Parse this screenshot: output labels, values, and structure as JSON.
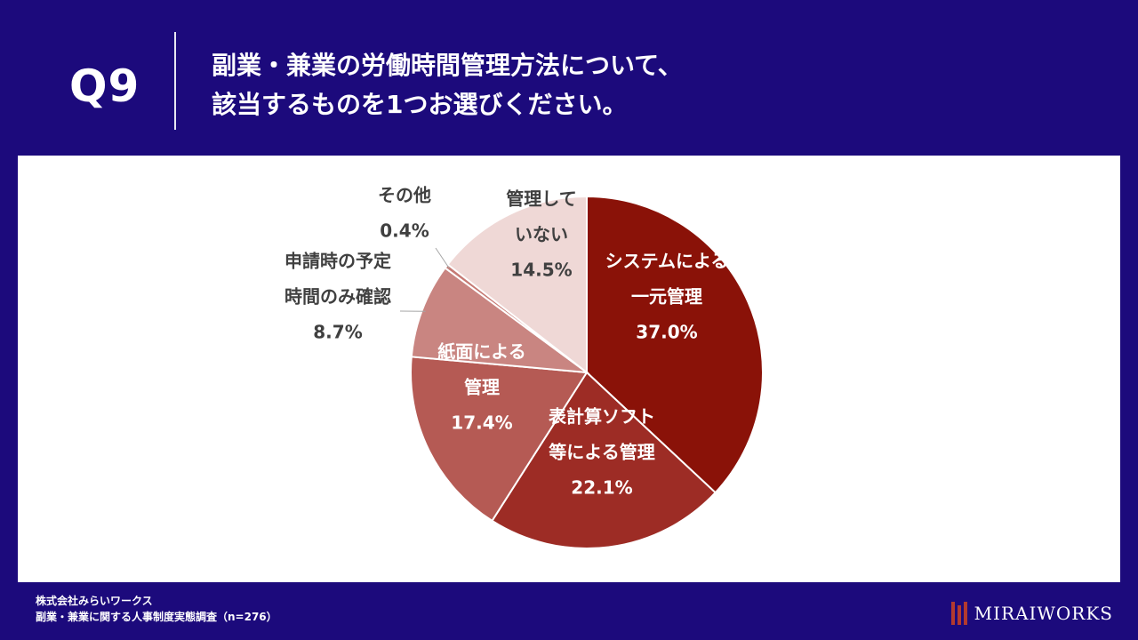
{
  "header": {
    "q_label": "Q9",
    "question_line1": "副業・兼業の労働時間管理方法について、",
    "question_line2": "該当するものを1つお選びください。"
  },
  "footer": {
    "company": "株式会社みらいワークス",
    "survey": "副業・兼業に関する人事制度実態調査（n=276）",
    "brand": "MIRAIWORKS"
  },
  "colors": {
    "background": "#1c0a7c",
    "panel": "#ffffff",
    "brand_mark": "#b33a2f"
  },
  "chart_data": {
    "type": "pie",
    "title": "",
    "start": "12 o'clock",
    "direction": "clockwise",
    "slices": [
      {
        "label_lines": [
          "システムによる",
          "一元管理"
        ],
        "value": 37.0,
        "value_text": "37.0%",
        "color": "#8a1208",
        "label_style": "inside"
      },
      {
        "label_lines": [
          "表計算ソフト",
          "等による管理"
        ],
        "value": 22.1,
        "value_text": "22.1%",
        "color": "#9d2c25",
        "label_style": "inside"
      },
      {
        "label_lines": [
          "紙面による",
          "管理"
        ],
        "value": 17.4,
        "value_text": "17.4%",
        "color": "#b55a54",
        "label_style": "inside"
      },
      {
        "label_lines": [
          "申請時の予定",
          "時間のみ確認"
        ],
        "value": 8.7,
        "value_text": "8.7%",
        "color": "#c98581",
        "label_style": "outside"
      },
      {
        "label_lines": [
          "その他"
        ],
        "value": 0.4,
        "value_text": "0.4%",
        "color": "#c67a74",
        "label_style": "outside"
      },
      {
        "label_lines": [
          "管理して",
          "いない"
        ],
        "value": 14.5,
        "value_text": "14.5%",
        "color": "#efd8d6",
        "label_style": "inside-dark"
      }
    ]
  }
}
